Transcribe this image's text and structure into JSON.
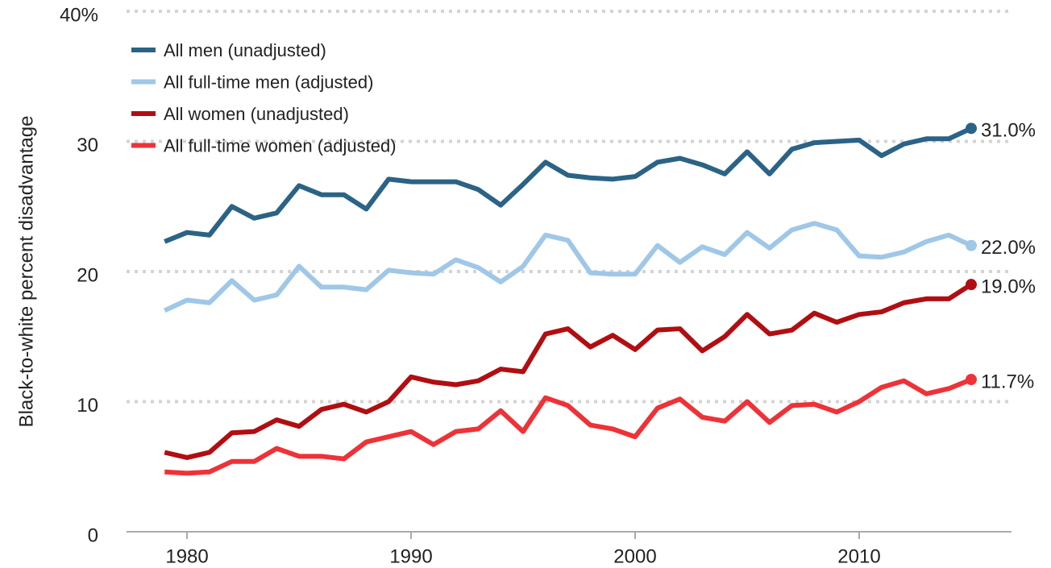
{
  "chart_data": {
    "type": "line",
    "y_label": "Black-to-white percent disadvantage",
    "x": [
      1979,
      1980,
      1981,
      1982,
      1983,
      1984,
      1985,
      1986,
      1987,
      1988,
      1989,
      1990,
      1991,
      1992,
      1993,
      1994,
      1995,
      1996,
      1997,
      1998,
      1999,
      2000,
      2001,
      2002,
      2003,
      2004,
      2005,
      2006,
      2007,
      2008,
      2009,
      2010,
      2011,
      2012,
      2013,
      2014,
      2015
    ],
    "xlim": [
      1977.3,
      2016.8
    ],
    "xticks": [
      1980,
      1990,
      2000,
      2010
    ],
    "ylim": [
      0,
      40
    ],
    "yticks": [
      0,
      10,
      20,
      30,
      {
        "value": 40,
        "label": "40%"
      }
    ],
    "grid": true,
    "legend": "top-left",
    "series": [
      {
        "name": "All men (unadjusted)",
        "color": "#2b6386",
        "values": [
          22.3,
          23.0,
          22.8,
          25.0,
          24.1,
          24.5,
          26.6,
          25.9,
          25.9,
          24.8,
          27.1,
          26.9,
          26.9,
          26.9,
          26.3,
          25.1,
          26.7,
          28.4,
          27.4,
          27.2,
          27.1,
          27.3,
          28.4,
          28.7,
          28.2,
          27.5,
          29.2,
          27.5,
          29.4,
          29.9,
          30.0,
          30.1,
          28.9,
          29.8,
          30.2,
          30.2,
          31.0
        ],
        "value_labels": [
          null,
          null,
          null,
          null,
          null,
          null,
          null,
          null,
          null,
          null,
          null,
          null,
          null,
          null,
          null,
          null,
          null,
          null,
          null,
          null,
          null,
          null,
          null,
          null,
          null,
          null,
          null,
          null,
          null,
          null,
          null,
          null,
          null,
          null,
          null,
          null,
          "31.0%"
        ]
      },
      {
        "name": "All full-time men (adjusted)",
        "color": "#9fc7e8",
        "values": [
          17.0,
          17.8,
          17.6,
          19.3,
          17.8,
          18.2,
          20.4,
          18.8,
          18.8,
          18.6,
          20.1,
          19.9,
          19.8,
          20.9,
          20.3,
          19.2,
          20.4,
          22.8,
          22.4,
          19.9,
          19.8,
          19.8,
          22.0,
          20.7,
          21.9,
          21.3,
          23.0,
          21.8,
          23.2,
          23.7,
          23.2,
          21.2,
          21.1,
          21.5,
          22.3,
          22.8,
          22.0
        ],
        "value_labels": [
          null,
          null,
          null,
          null,
          null,
          null,
          null,
          null,
          null,
          null,
          null,
          null,
          null,
          null,
          null,
          null,
          null,
          null,
          null,
          null,
          null,
          null,
          null,
          null,
          null,
          null,
          null,
          null,
          null,
          null,
          null,
          null,
          null,
          null,
          null,
          null,
          "22.0%"
        ]
      },
      {
        "name": "All women (unadjusted)",
        "color": "#b10e12",
        "values": [
          6.1,
          5.7,
          6.1,
          7.6,
          7.7,
          8.6,
          8.1,
          9.4,
          9.8,
          9.2,
          10.0,
          11.9,
          11.5,
          11.3,
          11.6,
          12.5,
          12.3,
          15.2,
          15.6,
          14.2,
          15.1,
          14.0,
          15.5,
          15.6,
          13.9,
          15.0,
          16.7,
          15.2,
          15.5,
          16.8,
          16.1,
          16.7,
          16.9,
          17.6,
          17.9,
          17.9,
          19.0
        ],
        "value_labels": [
          null,
          null,
          null,
          null,
          null,
          null,
          null,
          null,
          null,
          null,
          null,
          null,
          null,
          null,
          null,
          null,
          null,
          null,
          null,
          null,
          null,
          null,
          null,
          null,
          null,
          null,
          null,
          null,
          null,
          null,
          null,
          null,
          null,
          null,
          null,
          null,
          "19.0%"
        ]
      },
      {
        "name": "All full-time women (adjusted)",
        "color": "#ee3237",
        "values": [
          4.6,
          4.5,
          4.6,
          5.4,
          5.4,
          6.4,
          5.8,
          5.8,
          5.6,
          6.9,
          7.3,
          7.7,
          6.7,
          7.7,
          7.9,
          9.3,
          7.7,
          10.3,
          9.7,
          8.2,
          7.9,
          7.3,
          9.5,
          10.2,
          8.8,
          8.5,
          10.0,
          8.4,
          9.7,
          9.8,
          9.2,
          10.0,
          11.1,
          11.6,
          10.6,
          11.0,
          11.7
        ],
        "value_labels": [
          null,
          null,
          null,
          null,
          null,
          null,
          null,
          null,
          null,
          null,
          null,
          null,
          null,
          null,
          null,
          null,
          null,
          null,
          null,
          null,
          null,
          null,
          null,
          null,
          null,
          null,
          null,
          null,
          null,
          null,
          null,
          null,
          null,
          null,
          null,
          null,
          "11.7%"
        ]
      }
    ]
  }
}
